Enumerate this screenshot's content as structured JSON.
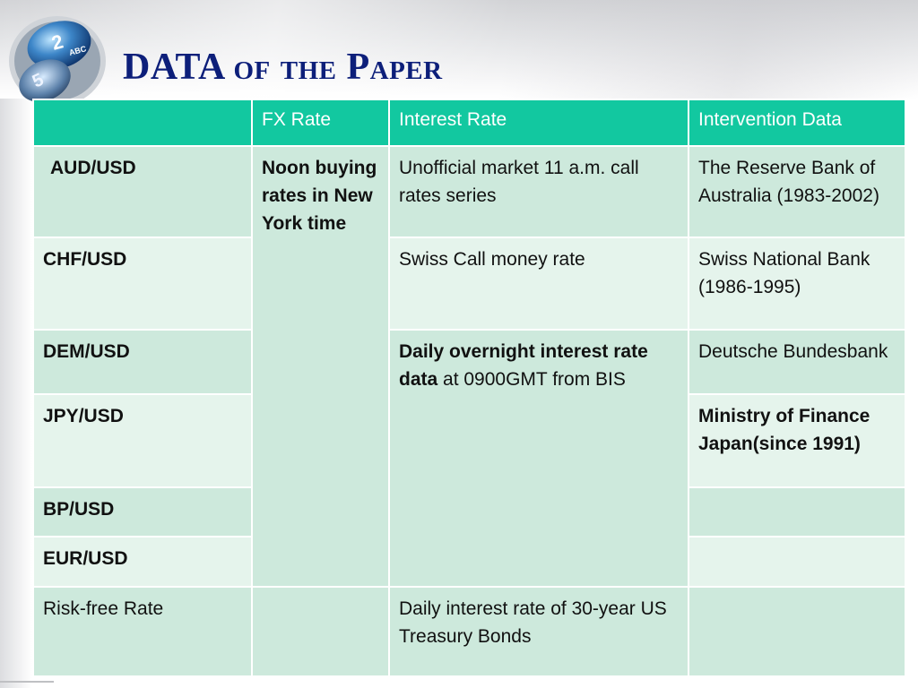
{
  "slide": {
    "title_main": "DATA",
    "title_rest": "of the Paper"
  },
  "logo": {
    "icon": "phone-keypad-keys-icon",
    "key_top_digit": "2",
    "key_top_letters": "ABC",
    "key_bottom_digit": "5"
  },
  "table": {
    "headers": [
      "",
      "FX Rate",
      "Interest Rate",
      "Intervention Data"
    ],
    "rows": {
      "aud": {
        "label": "AUD/USD",
        "intervention": "The Reserve Bank of Australia (1983-2002)"
      },
      "chf": {
        "label": "CHF/USD",
        "interest": "Swiss Call money rate",
        "intervention": "Swiss National Bank (1986-1995)"
      },
      "dem": {
        "label": "DEM/USD",
        "intervention": "Deutsche Bundesbank"
      },
      "jpy": {
        "label": "JPY/USD",
        "intervention": "Ministry of Finance Japan(since 1991)"
      },
      "bp": {
        "label": "BP/USD"
      },
      "eur": {
        "label": "EUR/USD"
      },
      "riskfree": {
        "label": "Risk-free Rate",
        "fx": "",
        "interest": "Daily interest rate of 30-year US Treasury Bonds",
        "intervention": ""
      }
    },
    "fx_rate_merged": "Noon buying rates in New York time",
    "aud_interest": "Unofficial market 11 a.m. call rates series",
    "bis_interest_bold": "Daily overnight interest rate data",
    "bis_interest_rest": " at 0900GMT from BIS"
  },
  "colors": {
    "header_bg": "#12c8a0",
    "cell_dark": "#cde9dc",
    "cell_light": "#e5f4ec",
    "title": "#0d1f7a"
  }
}
